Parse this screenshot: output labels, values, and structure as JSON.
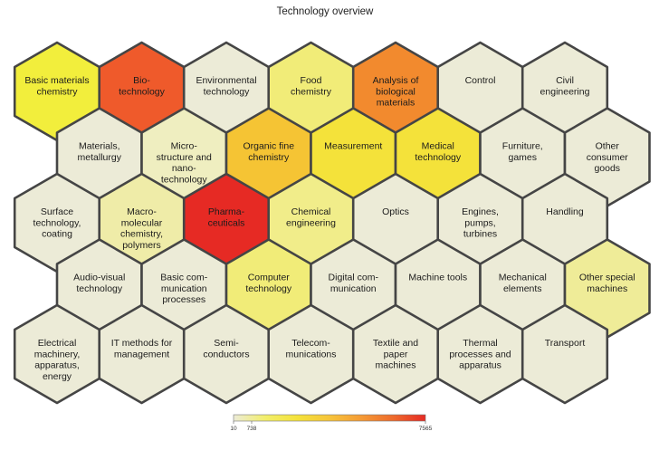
{
  "title": "Technology overview",
  "colors": {
    "scale": [
      "#ecebd7",
      "#f2ee6a",
      "#f4e23a",
      "#f6c43a",
      "#f59a34",
      "#ee6a2c",
      "#e62a24"
    ],
    "border": "#454545"
  },
  "legend": {
    "min_label": "10",
    "mid_label": "738",
    "max_label": "7565"
  },
  "hexes": [
    {
      "row": 0,
      "col": 0,
      "lines": [
        "Basic materials",
        "chemistry"
      ],
      "color": "#f2ee3c"
    },
    {
      "row": 0,
      "col": 1,
      "lines": [
        "Bio-",
        "technology"
      ],
      "color": "#ef5a2b"
    },
    {
      "row": 0,
      "col": 2,
      "lines": [
        "Environmental",
        "technology"
      ],
      "color": "#ecebd7"
    },
    {
      "row": 0,
      "col": 3,
      "lines": [
        "Food",
        "chemistry"
      ],
      "color": "#f1ec78"
    },
    {
      "row": 0,
      "col": 4,
      "lines": [
        "Analysis of",
        "biological",
        "materials"
      ],
      "color": "#f28a2e"
    },
    {
      "row": 0,
      "col": 5,
      "lines": [
        "Control"
      ],
      "color": "#ecebd7"
    },
    {
      "row": 0,
      "col": 6,
      "lines": [
        "Civil",
        "engineering"
      ],
      "color": "#ecebd7"
    },
    {
      "row": 1,
      "col": 0,
      "lines": [
        "Materials,",
        "metallurgy"
      ],
      "color": "#ecebd7"
    },
    {
      "row": 1,
      "col": 1,
      "lines": [
        "Micro-",
        "structure and",
        "nano-",
        "technology"
      ],
      "color": "#efeec0"
    },
    {
      "row": 1,
      "col": 2,
      "lines": [
        "Organic fine",
        "chemistry"
      ],
      "color": "#f5c434"
    },
    {
      "row": 1,
      "col": 3,
      "lines": [
        "Measurement"
      ],
      "color": "#f4e23a"
    },
    {
      "row": 1,
      "col": 4,
      "lines": [
        "Medical",
        "technology"
      ],
      "color": "#f4e23a"
    },
    {
      "row": 1,
      "col": 5,
      "lines": [
        "Furniture,",
        "games"
      ],
      "color": "#ecebd7"
    },
    {
      "row": 1,
      "col": 6,
      "lines": [
        "Other",
        "consumer",
        "goods"
      ],
      "color": "#ecebd7"
    },
    {
      "row": 2,
      "col": 0,
      "lines": [
        "Surface",
        "technology,",
        "coating"
      ],
      "color": "#ecebd7"
    },
    {
      "row": 2,
      "col": 1,
      "lines": [
        "Macro-",
        "molecular",
        "chemistry,",
        "polymers"
      ],
      "color": "#efeca8"
    },
    {
      "row": 2,
      "col": 2,
      "lines": [
        "Pharma-",
        "ceuticals"
      ],
      "color": "#e62a24"
    },
    {
      "row": 2,
      "col": 3,
      "lines": [
        "Chemical",
        "engineering"
      ],
      "color": "#f1ed8a"
    },
    {
      "row": 2,
      "col": 4,
      "lines": [
        "Optics"
      ],
      "color": "#ecebd7"
    },
    {
      "row": 2,
      "col": 5,
      "lines": [
        "Engines,",
        "pumps,",
        "turbines"
      ],
      "color": "#ecebd7"
    },
    {
      "row": 2,
      "col": 6,
      "lines": [
        "Handling"
      ],
      "color": "#ecebd7"
    },
    {
      "row": 3,
      "col": 0,
      "lines": [
        "Audio-visual",
        "technology"
      ],
      "color": "#ecebd7"
    },
    {
      "row": 3,
      "col": 1,
      "lines": [
        "Basic com-",
        "munication",
        "processes"
      ],
      "color": "#ecebd7"
    },
    {
      "row": 3,
      "col": 2,
      "lines": [
        "Computer",
        "technology"
      ],
      "color": "#f1ec78"
    },
    {
      "row": 3,
      "col": 3,
      "lines": [
        "Digital com-",
        "munication"
      ],
      "color": "#ecebd7"
    },
    {
      "row": 3,
      "col": 4,
      "lines": [
        "Machine tools"
      ],
      "color": "#ecebd7"
    },
    {
      "row": 3,
      "col": 5,
      "lines": [
        "Mechanical",
        "elements"
      ],
      "color": "#ecebd7"
    },
    {
      "row": 3,
      "col": 6,
      "lines": [
        "Other special",
        "machines"
      ],
      "color": "#efec98"
    },
    {
      "row": 4,
      "col": 0,
      "lines": [
        "Electrical",
        "machinery,",
        "apparatus,",
        "energy"
      ],
      "color": "#ecebd7"
    },
    {
      "row": 4,
      "col": 1,
      "lines": [
        "IT methods for",
        "management"
      ],
      "color": "#ecebd7"
    },
    {
      "row": 4,
      "col": 2,
      "lines": [
        "Semi-",
        "conductors"
      ],
      "color": "#ecebd7"
    },
    {
      "row": 4,
      "col": 3,
      "lines": [
        "Telecom-",
        "munications"
      ],
      "color": "#ecebd7"
    },
    {
      "row": 4,
      "col": 4,
      "lines": [
        "Textile and",
        "paper",
        "machines"
      ],
      "color": "#ecebd7"
    },
    {
      "row": 4,
      "col": 5,
      "lines": [
        "Thermal",
        "processes and",
        "apparatus"
      ],
      "color": "#ecebd7"
    },
    {
      "row": 4,
      "col": 6,
      "lines": [
        "Transport"
      ],
      "color": "#ecebd7"
    }
  ]
}
